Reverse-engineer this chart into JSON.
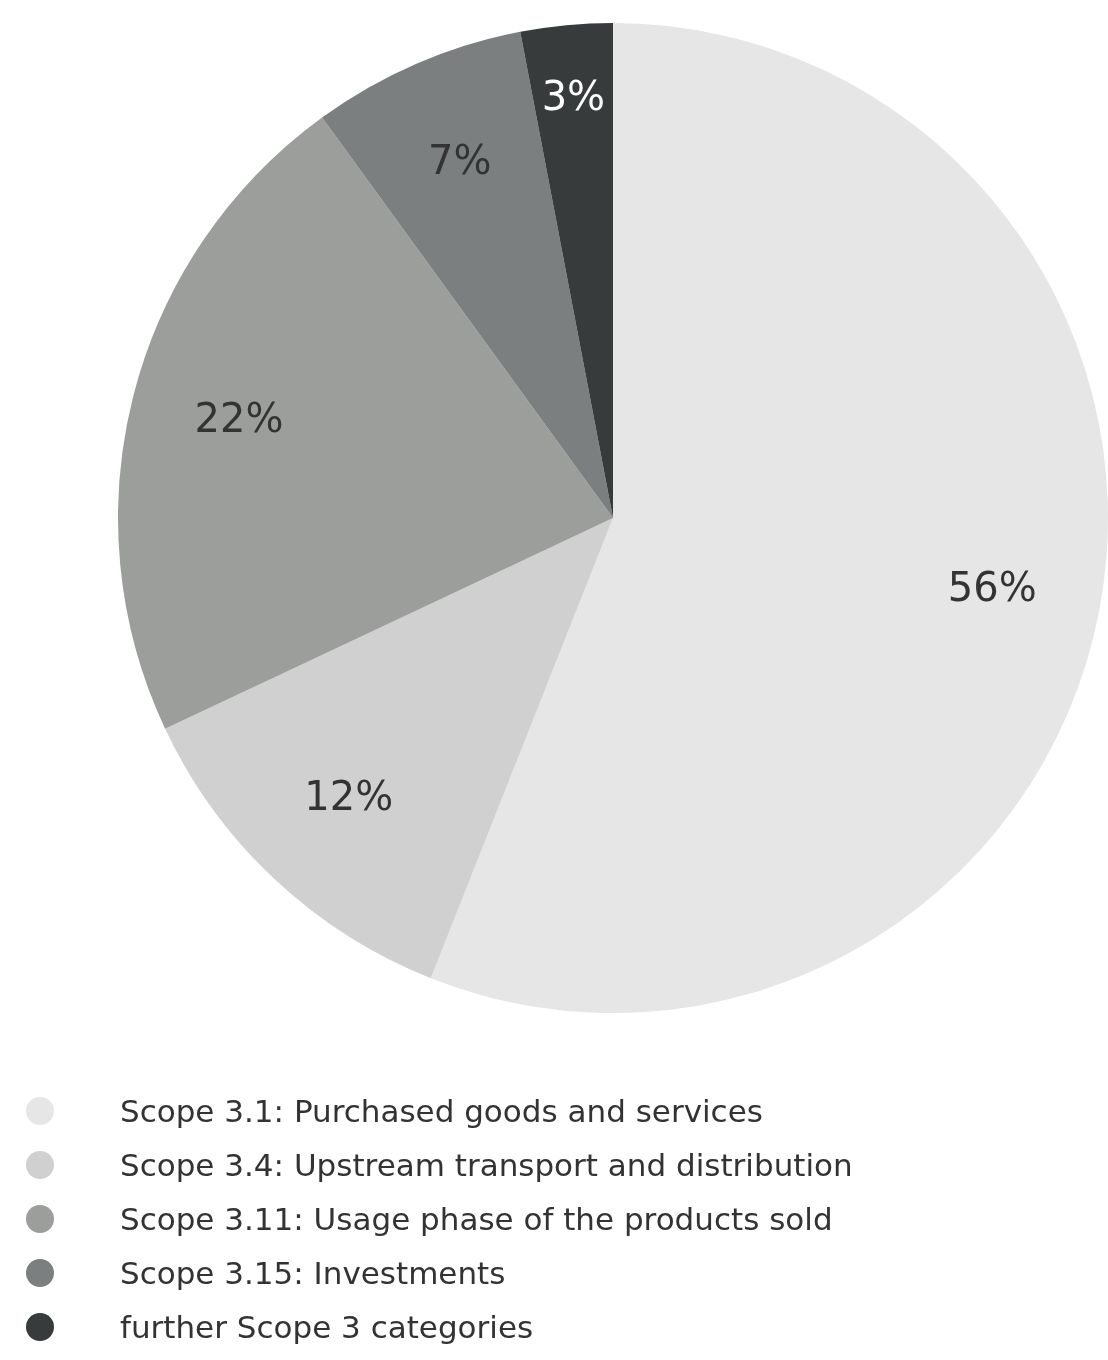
{
  "chart_data": {
    "type": "pie",
    "categories": [
      "Scope 3.1: Purchased goods and services",
      "Scope 3.4: Upstream transport and distribution",
      "Scope 3.11: Usage phase of the products sold",
      "Scope 3.15: Investments",
      "further Scope 3 categories"
    ],
    "values": [
      56,
      12,
      22,
      7,
      3
    ],
    "colors": [
      "#e5e6e5",
      "#cfd0cf",
      "#9c9e9c",
      "#7b7f80",
      "#383b3c"
    ],
    "value_labels": [
      "56%",
      "12%",
      "22%",
      "7%",
      "3%"
    ],
    "legend": "bottom"
  }
}
